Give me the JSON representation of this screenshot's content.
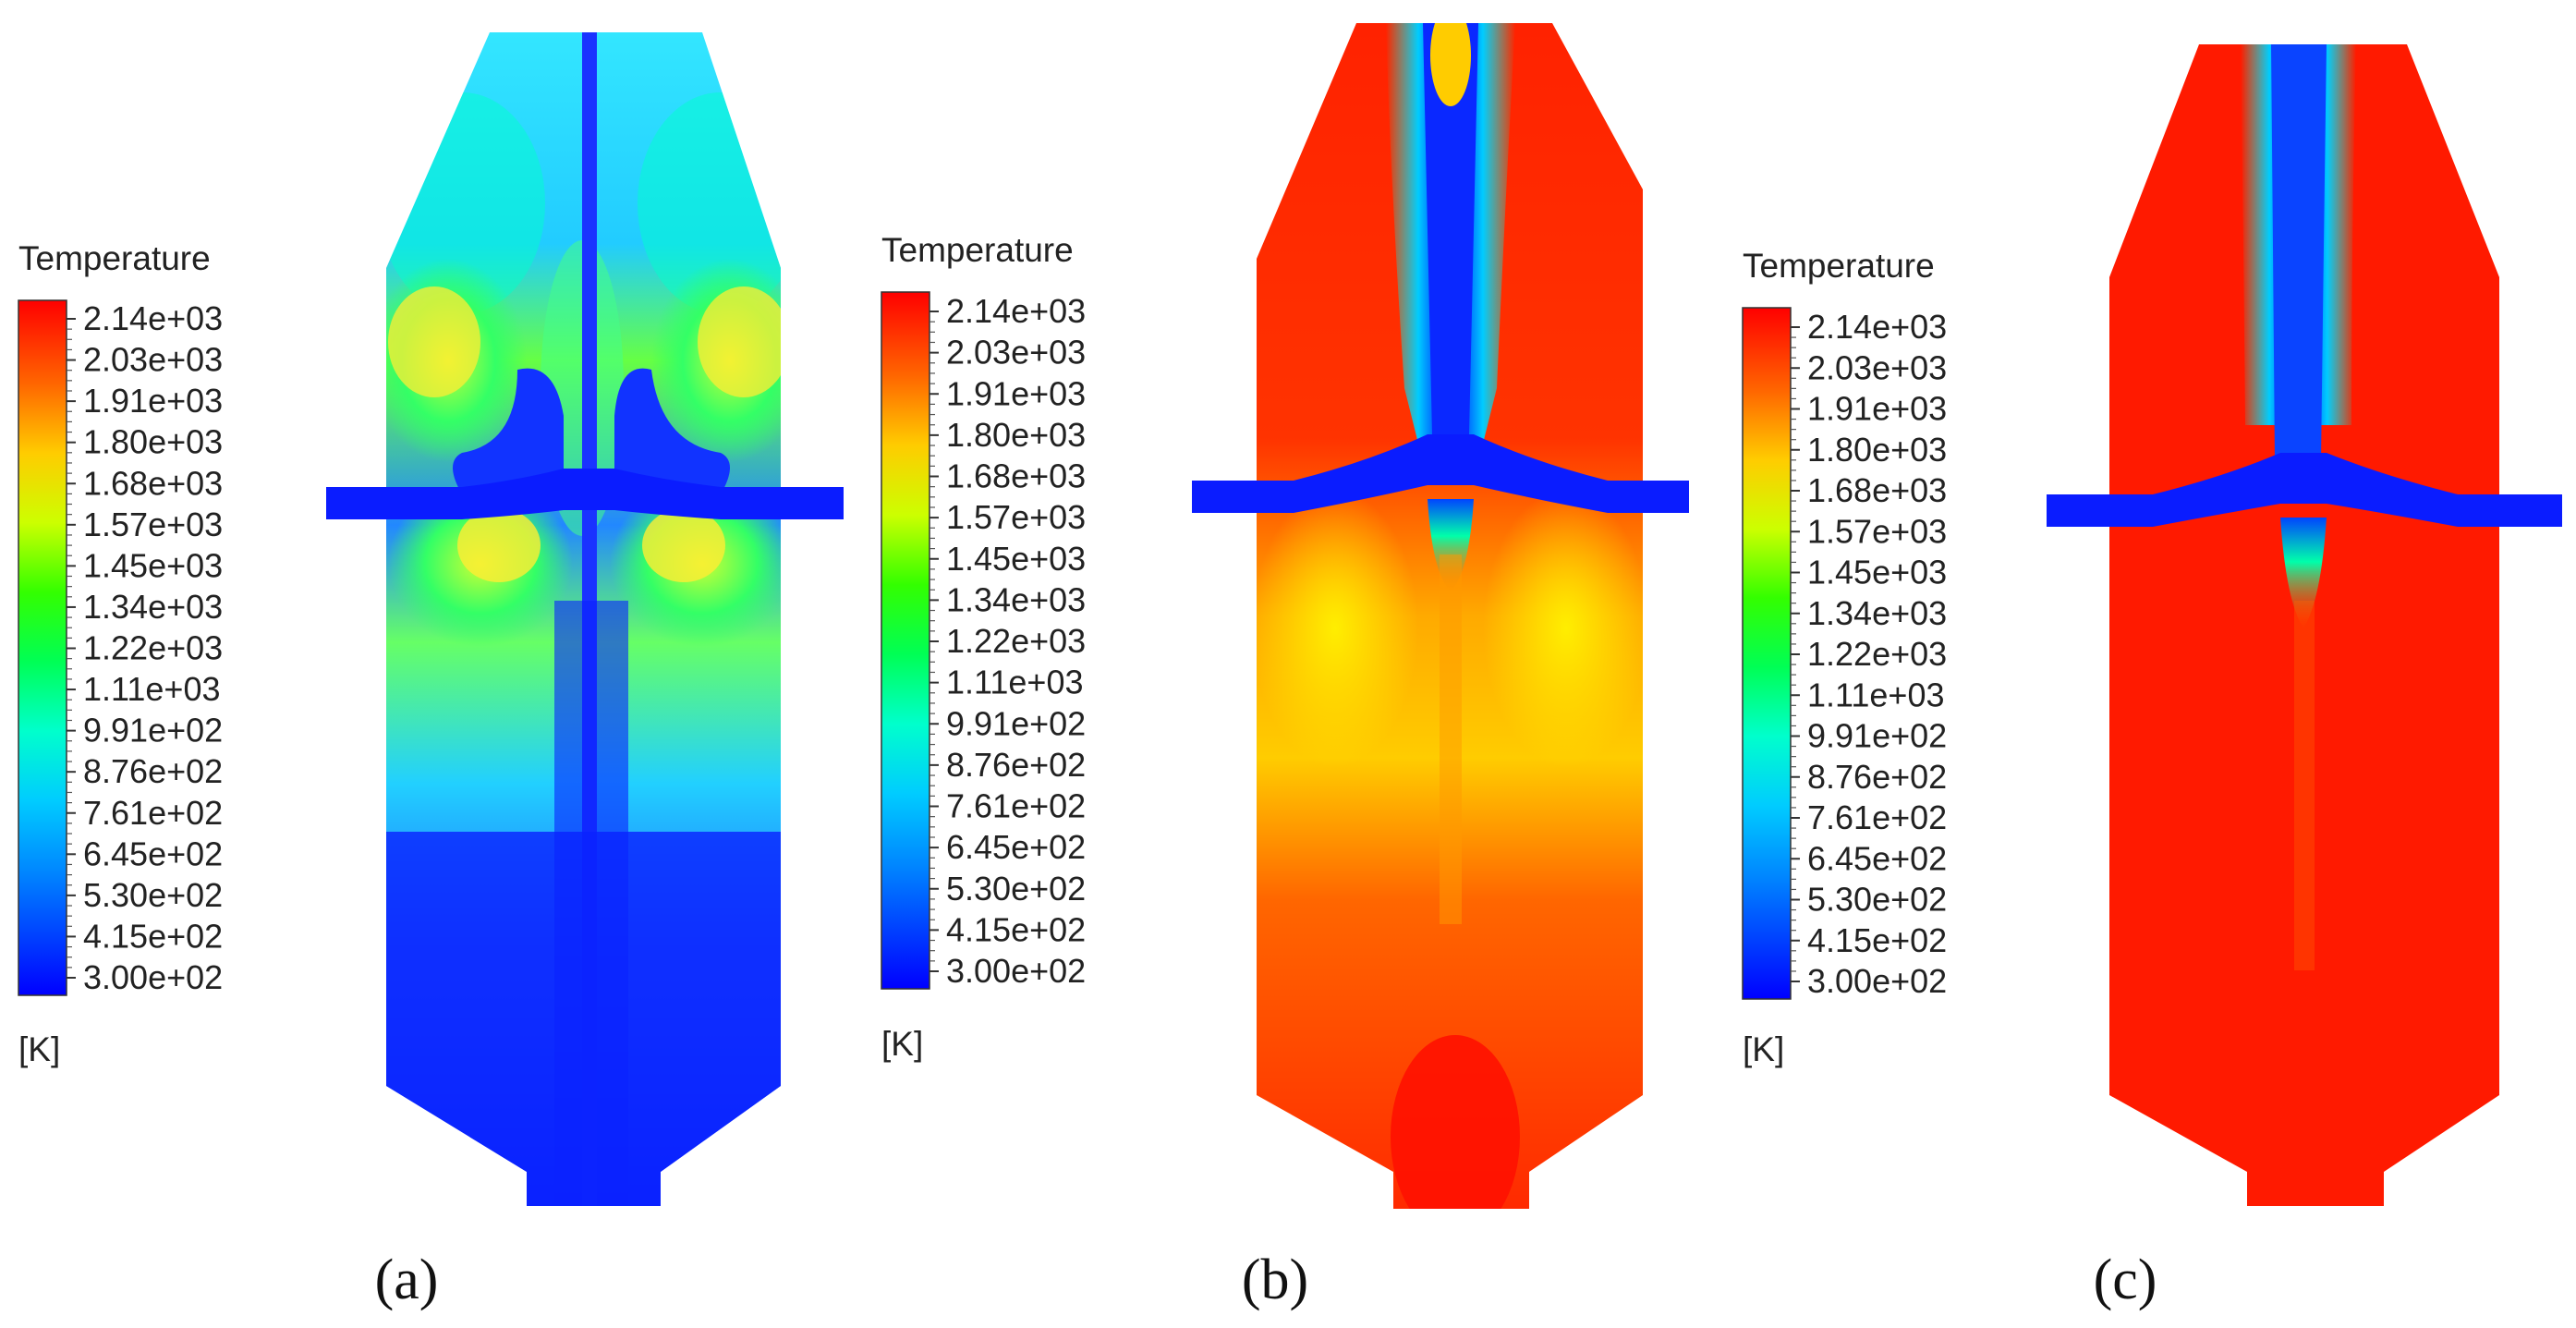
{
  "legend": {
    "title": "Temperature",
    "unit": "[K]",
    "ticks": [
      "2.14e+03",
      "2.03e+03",
      "1.91e+03",
      "1.80e+03",
      "1.68e+03",
      "1.57e+03",
      "1.45e+03",
      "1.34e+03",
      "1.22e+03",
      "1.11e+03",
      "9.91e+02",
      "8.76e+02",
      "7.61e+02",
      "6.45e+02",
      "5.30e+02",
      "4.15e+02",
      "3.00e+02"
    ],
    "colormap": [
      "#ff0000",
      "#ff4d00",
      "#ff9900",
      "#ffcc00",
      "#ffff00",
      "#ccff00",
      "#66ff00",
      "#00ff00",
      "#00ff66",
      "#00ffcc",
      "#00ffff",
      "#00ccff",
      "#0099ff",
      "#0066ff",
      "#0033ff",
      "#0000ff"
    ]
  },
  "panels": [
    {
      "label": "(a)",
      "background": "#2f86ff",
      "accent": "#00ff88",
      "jet": "#0022ff"
    },
    {
      "label": "(b)",
      "background": "#ff3300",
      "accent": "#ffcc00",
      "jet": "#0022ff"
    },
    {
      "label": "(c)",
      "background": "#ff1a00",
      "accent": "#ff5500",
      "jet": "#0022ff"
    }
  ]
}
